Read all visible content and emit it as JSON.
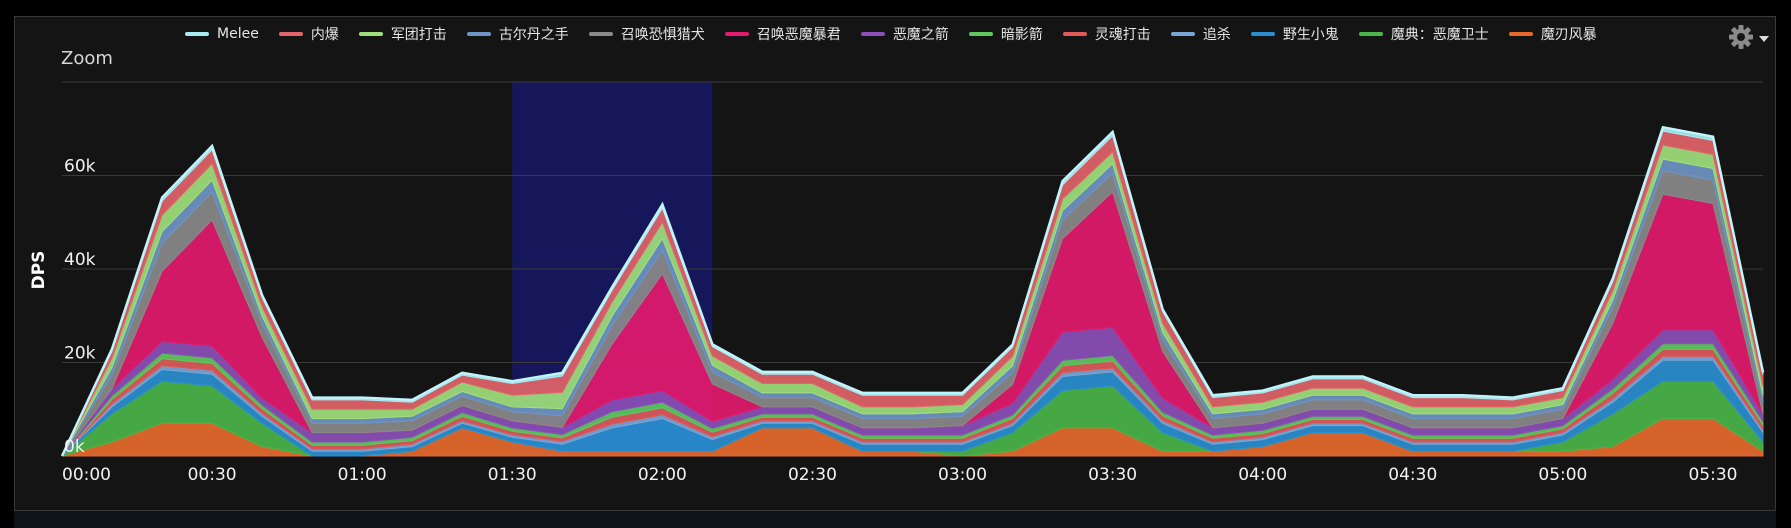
{
  "zoom_label": "Zoom",
  "settings_icon": "gear-icon",
  "chart_data": {
    "type": "area",
    "stacked": true,
    "ylabel": "DPS",
    "ylim": [
      0,
      80000
    ],
    "xlim": [
      0,
      340
    ],
    "grid": true,
    "legend_position": "top",
    "y_ticks": [
      0,
      20000,
      40000,
      60000
    ],
    "y_tick_labels": [
      "0k",
      "20k",
      "40k",
      "60k"
    ],
    "x_ticks": [
      0,
      30,
      60,
      90,
      120,
      150,
      180,
      210,
      240,
      270,
      300,
      330
    ],
    "x_tick_labels": [
      "00:00",
      "00:30",
      "01:00",
      "01:30",
      "02:00",
      "02:30",
      "03:00",
      "03:30",
      "04:00",
      "04:30",
      "05:00",
      "05:30"
    ],
    "x_unit": "seconds",
    "highlight_range": [
      90,
      130
    ],
    "highlight_color": "#16175a",
    "x": [
      0,
      10,
      20,
      30,
      40,
      50,
      60,
      70,
      80,
      90,
      100,
      110,
      120,
      130,
      140,
      150,
      160,
      170,
      180,
      190,
      200,
      210,
      220,
      230,
      240,
      250,
      260,
      270,
      280,
      290,
      300,
      310,
      320,
      330,
      340
    ],
    "series": [
      {
        "name": "魔刃风暴",
        "color": "#e66a2c",
        "values": [
          0,
          3000,
          7000,
          7000,
          2000,
          0,
          0,
          1000,
          6000,
          3000,
          1000,
          1000,
          1000,
          1000,
          6000,
          6000,
          1000,
          1000,
          0,
          1000,
          6000,
          6000,
          1000,
          1000,
          2000,
          5000,
          5000,
          1000,
          1000,
          1000,
          1000,
          2000,
          8000,
          8000,
          1000
        ]
      },
      {
        "name": "魔典：恶魔卫士",
        "color": "#4ab54a",
        "values": [
          0,
          6000,
          9000,
          8000,
          5000,
          0,
          0,
          0,
          0,
          0,
          0,
          0,
          0,
          0,
          0,
          0,
          0,
          0,
          1000,
          4000,
          8000,
          9000,
          4000,
          0,
          0,
          0,
          0,
          0,
          0,
          0,
          2000,
          7000,
          8000,
          8000,
          2000
        ]
      },
      {
        "name": "野生小鬼",
        "color": "#2a8fd0",
        "values": [
          0,
          1500,
          2500,
          2500,
          1500,
          1000,
          1000,
          1000,
          1000,
          1000,
          1500,
          5000,
          7000,
          2500,
          1000,
          1000,
          1500,
          1500,
          1500,
          1500,
          3000,
          3000,
          2000,
          1500,
          1500,
          1500,
          1500,
          1500,
          1500,
          1500,
          1500,
          2500,
          4500,
          4500,
          2000
        ]
      },
      {
        "name": "追杀",
        "color": "#7aa6d6",
        "values": [
          0,
          600,
          800,
          800,
          600,
          500,
          500,
          500,
          500,
          500,
          600,
          800,
          800,
          600,
          500,
          500,
          500,
          500,
          500,
          500,
          800,
          800,
          600,
          500,
          500,
          500,
          500,
          500,
          500,
          500,
          500,
          700,
          800,
          800,
          600
        ]
      },
      {
        "name": "灵魂打击",
        "color": "#e05a5a",
        "values": [
          0,
          1000,
          1500,
          1500,
          1000,
          800,
          800,
          800,
          1000,
          800,
          800,
          1500,
          1500,
          1000,
          800,
          800,
          800,
          800,
          800,
          1000,
          1500,
          1500,
          1000,
          800,
          800,
          800,
          800,
          800,
          800,
          800,
          800,
          1200,
          1500,
          1500,
          1000
        ]
      },
      {
        "name": "暗影箭",
        "color": "#5ec95e",
        "values": [
          0,
          800,
          1200,
          1200,
          800,
          700,
          700,
          700,
          800,
          700,
          700,
          1200,
          1200,
          800,
          700,
          700,
          700,
          700,
          700,
          800,
          1200,
          1200,
          800,
          700,
          700,
          700,
          700,
          700,
          700,
          700,
          700,
          1000,
          1200,
          1200,
          800
        ]
      },
      {
        "name": "恶魔之箭",
        "color": "#8c4fb8",
        "values": [
          0,
          1500,
          2500,
          2500,
          1500,
          2000,
          2000,
          1500,
          1500,
          1500,
          1500,
          2500,
          2500,
          1500,
          1500,
          1500,
          1500,
          1500,
          2000,
          2500,
          6000,
          6000,
          3000,
          1500,
          1500,
          1500,
          1500,
          1500,
          1500,
          1500,
          1500,
          2000,
          3000,
          3000,
          1500
        ]
      },
      {
        "name": "召唤恶魔暴君",
        "color": "#e31a6e",
        "values": [
          0,
          0,
          15000,
          27000,
          13000,
          0,
          0,
          0,
          0,
          0,
          0,
          12000,
          25000,
          8000,
          0,
          0,
          0,
          0,
          0,
          4000,
          20000,
          29000,
          10000,
          0,
          0,
          0,
          0,
          0,
          0,
          0,
          0,
          12000,
          29000,
          27000,
          0
        ]
      },
      {
        "name": "召唤恐惧猎犬",
        "color": "#8a8a8a",
        "values": [
          0,
          3000,
          6000,
          6000,
          3000,
          2000,
          2000,
          2000,
          2000,
          2000,
          2500,
          4000,
          5000,
          2500,
          2000,
          2000,
          2000,
          2000,
          2000,
          2500,
          4000,
          4000,
          2500,
          2000,
          2000,
          2000,
          2000,
          2000,
          2000,
          2000,
          2000,
          3500,
          5000,
          5000,
          2500
        ]
      },
      {
        "name": "古尔丹之手",
        "color": "#6f95c4",
        "values": [
          0,
          1500,
          2500,
          2500,
          1500,
          1000,
          1000,
          1000,
          1000,
          1000,
          1500,
          2000,
          2500,
          1500,
          1000,
          1000,
          1000,
          1000,
          1000,
          1500,
          2000,
          2000,
          1500,
          1000,
          1000,
          1000,
          1000,
          1000,
          1000,
          1000,
          1000,
          1500,
          2500,
          2500,
          1500
        ]
      },
      {
        "name": "军团打击",
        "color": "#9fe07c",
        "values": [
          0,
          2000,
          3500,
          3500,
          2000,
          2000,
          2000,
          1500,
          2000,
          2500,
          3500,
          3000,
          3500,
          2000,
          2000,
          2000,
          1500,
          1500,
          1500,
          2000,
          2500,
          2500,
          2000,
          1500,
          1500,
          1500,
          1500,
          1500,
          1500,
          1500,
          1500,
          2000,
          3000,
          3000,
          2000
        ]
      },
      {
        "name": "内爆",
        "color": "#e2646a",
        "values": [
          0,
          1500,
          3000,
          3000,
          2000,
          2000,
          2000,
          1500,
          1500,
          2500,
          3500,
          2500,
          3000,
          2000,
          2000,
          2000,
          2500,
          2500,
          2000,
          2000,
          3000,
          3500,
          2500,
          2000,
          2000,
          2000,
          2000,
          2000,
          2000,
          1500,
          1500,
          2000,
          3000,
          3000,
          2500
        ]
      },
      {
        "name": "Melee",
        "color": "#a6ecf5",
        "values": [
          0,
          500,
          800,
          800,
          500,
          500,
          500,
          500,
          500,
          500,
          700,
          700,
          800,
          500,
          500,
          500,
          500,
          500,
          500,
          500,
          800,
          800,
          500,
          500,
          500,
          500,
          500,
          500,
          500,
          500,
          500,
          600,
          800,
          800,
          500
        ]
      }
    ]
  }
}
